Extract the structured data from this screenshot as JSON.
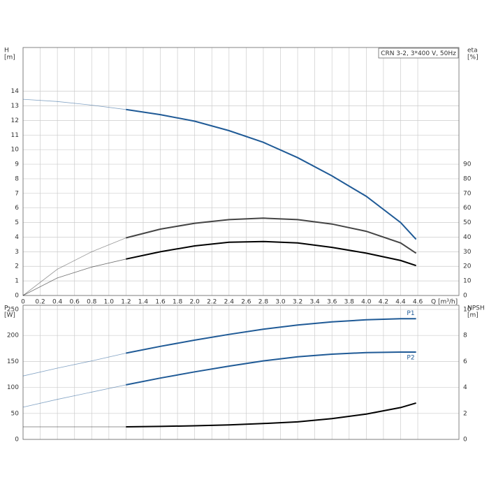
{
  "chart_data": [
    {
      "type": "line",
      "title": "CRN 3-2, 3*400 V, 50Hz",
      "ylabel": "H",
      "yunit": "[m]",
      "y2label": "eta",
      "y2unit": "[%]",
      "xlabel": "Q [m³/h]",
      "x": [
        0,
        0.4,
        0.8,
        1.2,
        1.6,
        2.0,
        2.4,
        2.8,
        3.2,
        3.6,
        4.0,
        4.4,
        4.58
      ],
      "thin_below_x": 1.2,
      "series": [
        {
          "color": "#1f5a96",
          "values": [
            13.45,
            13.3,
            13.05,
            12.75,
            12.4,
            11.95,
            11.3,
            10.5,
            9.45,
            8.2,
            6.8,
            5.0,
            3.85
          ]
        },
        {
          "color": "#444444",
          "axis": "y2",
          "values": [
            0,
            18,
            30,
            39.5,
            45.5,
            49.5,
            52,
            53,
            52,
            49,
            44,
            36,
            29
          ]
        },
        {
          "color": "#000000",
          "axis": "y2",
          "values": [
            0,
            12,
            19.5,
            25,
            30,
            34,
            36.5,
            37,
            36,
            33,
            29,
            24,
            20.5
          ]
        }
      ],
      "xlim": [
        0,
        5.08
      ],
      "xticks": [
        0,
        0.2,
        0.4,
        0.6,
        0.8,
        {
          "value": 1,
          "label": "1.0"
        },
        1.2,
        1.4,
        1.6,
        1.8,
        {
          "value": 2,
          "label": "2.0"
        },
        2.2,
        2.4,
        2.6,
        2.8,
        {
          "value": 3,
          "label": "3.0"
        },
        3.2,
        3.4,
        3.6,
        3.8,
        {
          "value": 4,
          "label": "4.0"
        },
        4.2,
        4.4,
        4.6
      ],
      "ylim": [
        0,
        17
      ],
      "yticks": [
        0,
        1,
        2,
        3,
        4,
        5,
        6,
        7,
        8,
        9,
        10,
        11,
        12,
        13,
        14
      ],
      "y2lim": [
        0,
        170
      ],
      "y2ticks": [
        0,
        10,
        20,
        30,
        40,
        50,
        60,
        70,
        80,
        90
      ],
      "grid": true
    },
    {
      "type": "line",
      "ylabel": "P",
      "yunit": "[W]",
      "y2label": "NPSH",
      "y2unit": "[m]",
      "x": [
        0,
        0.4,
        0.8,
        1.2,
        1.6,
        2.0,
        2.4,
        2.8,
        3.2,
        3.6,
        4.0,
        4.4,
        4.58
      ],
      "thin_below_x": 1.2,
      "series": [
        {
          "name": "P1",
          "color": "#1f5a96",
          "values": [
            122,
            137,
            151,
            166,
            179,
            191,
            202,
            212,
            220,
            226,
            230,
            232,
            232
          ]
        },
        {
          "name": "P2",
          "color": "#1f5a96",
          "values": [
            62,
            77,
            91,
            105,
            118,
            130,
            141,
            151,
            159,
            164,
            167,
            168,
            168
          ]
        },
        {
          "color": "#000000",
          "axis": "y2",
          "values": [
            0.97,
            0.97,
            0.97,
            0.97,
            1.0,
            1.05,
            1.12,
            1.22,
            1.35,
            1.6,
            1.95,
            2.45,
            2.8
          ]
        }
      ],
      "xlim": [
        0,
        5.08
      ],
      "ylim": [
        0,
        258
      ],
      "yticks": [
        0,
        50,
        100,
        150,
        200,
        250
      ],
      "y2lim": [
        0,
        10.32
      ],
      "y2ticks": [
        0,
        2,
        4,
        6,
        8,
        10
      ],
      "grid": true
    }
  ]
}
